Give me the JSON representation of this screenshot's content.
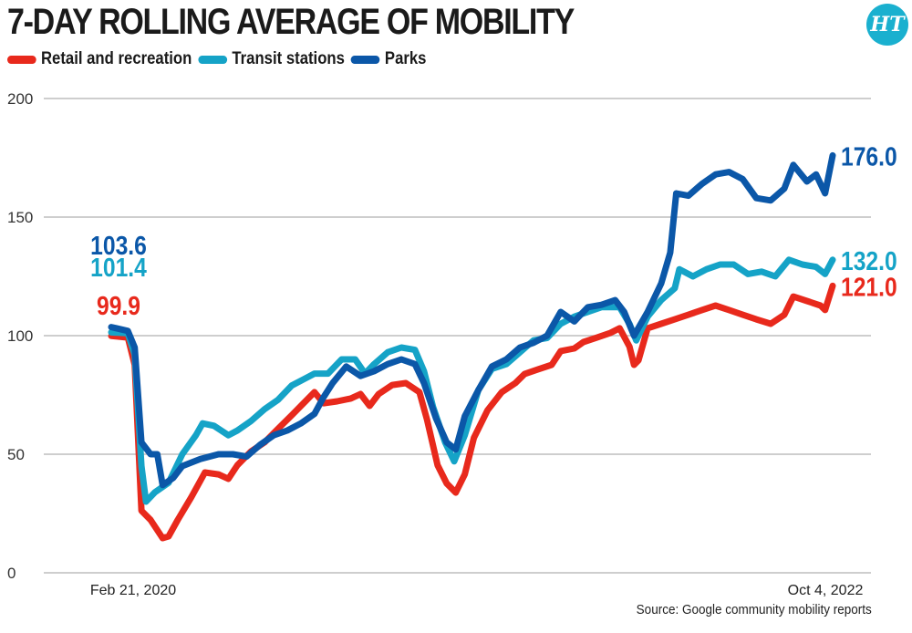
{
  "chart_data": {
    "type": "line",
    "title": "7-DAY ROLLING AVERAGE OF MOBILITY",
    "xlabel": "",
    "ylabel": "",
    "ylim": [
      0,
      200
    ],
    "yticks": [
      "0",
      "50",
      "100",
      "150",
      "200"
    ],
    "ytick_values": [
      0,
      50,
      100,
      150,
      200
    ],
    "xlim_days": [
      0,
      955
    ],
    "xtick_labels": [
      "Feb 21, 2020",
      "Oct 4, 2022"
    ],
    "x_unit": "days since Feb 21, 2020",
    "grid": true,
    "legend_position": "top-left",
    "source": "Source: Google community mobility reports",
    "logo_text": "HT",
    "series": [
      {
        "name": "Retail and recreation",
        "color": "#e8291c",
        "start_label": "99.9",
        "end_label": "121.0",
        "points": [
          [
            0,
            99.9
          ],
          [
            22,
            99.2
          ],
          [
            31,
            87.7
          ],
          [
            40,
            26.2
          ],
          [
            52,
            22.3
          ],
          [
            68,
            14.6
          ],
          [
            76,
            15.4
          ],
          [
            88,
            22.3
          ],
          [
            106,
            31.9
          ],
          [
            124,
            42.3
          ],
          [
            142,
            41.5
          ],
          [
            155,
            39.6
          ],
          [
            167,
            45.4
          ],
          [
            185,
            51.2
          ],
          [
            203,
            55
          ],
          [
            221,
            60.8
          ],
          [
            239,
            66.5
          ],
          [
            257,
            72.3
          ],
          [
            269,
            76.2
          ],
          [
            281,
            71.5
          ],
          [
            299,
            72.3
          ],
          [
            317,
            73.5
          ],
          [
            330,
            75.4
          ],
          [
            342,
            70.4
          ],
          [
            354,
            75.4
          ],
          [
            372,
            79.2
          ],
          [
            390,
            80
          ],
          [
            408,
            76.2
          ],
          [
            418,
            64.6
          ],
          [
            432,
            45.4
          ],
          [
            444,
            37.7
          ],
          [
            456,
            33.8
          ],
          [
            468,
            41.5
          ],
          [
            480,
            56.9
          ],
          [
            498,
            68.5
          ],
          [
            517,
            76.2
          ],
          [
            535,
            80
          ],
          [
            547,
            83.8
          ],
          [
            565,
            85.8
          ],
          [
            583,
            87.7
          ],
          [
            595,
            93.5
          ],
          [
            613,
            94.6
          ],
          [
            625,
            97.3
          ],
          [
            643,
            99.2
          ],
          [
            661,
            101.2
          ],
          [
            673,
            103.1
          ],
          [
            686,
            95.4
          ],
          [
            692,
            87.7
          ],
          [
            698,
            89.6
          ],
          [
            710,
            103.1
          ],
          [
            728,
            105
          ],
          [
            746,
            106.9
          ],
          [
            764,
            108.8
          ],
          [
            782,
            110.8
          ],
          [
            800,
            112.7
          ],
          [
            818,
            110.8
          ],
          [
            836,
            108.8
          ],
          [
            854,
            106.9
          ],
          [
            873,
            105
          ],
          [
            891,
            108.8
          ],
          [
            903,
            116.5
          ],
          [
            921,
            114.6
          ],
          [
            939,
            112.7
          ],
          [
            945,
            110.8
          ],
          [
            955,
            121
          ]
        ]
      },
      {
        "name": "Transit stations",
        "color": "#15a3c7",
        "start_label": "101.4",
        "end_label": "132.0",
        "points": [
          [
            0,
            101.4
          ],
          [
            22,
            101
          ],
          [
            31,
            92
          ],
          [
            40,
            45
          ],
          [
            46,
            30
          ],
          [
            58,
            34
          ],
          [
            76,
            38
          ],
          [
            94,
            50
          ],
          [
            112,
            58
          ],
          [
            121,
            63
          ],
          [
            136,
            62
          ],
          [
            155,
            58
          ],
          [
            167,
            60
          ],
          [
            185,
            64
          ],
          [
            203,
            69
          ],
          [
            221,
            73
          ],
          [
            239,
            79
          ],
          [
            257,
            82
          ],
          [
            269,
            84
          ],
          [
            287,
            84
          ],
          [
            305,
            90
          ],
          [
            323,
            90
          ],
          [
            336,
            84
          ],
          [
            348,
            88
          ],
          [
            366,
            93
          ],
          [
            384,
            95
          ],
          [
            402,
            94
          ],
          [
            414,
            85
          ],
          [
            426,
            70
          ],
          [
            442,
            55
          ],
          [
            454,
            47
          ],
          [
            468,
            58
          ],
          [
            486,
            77
          ],
          [
            504,
            86
          ],
          [
            523,
            88
          ],
          [
            541,
            93
          ],
          [
            559,
            98
          ],
          [
            577,
            99
          ],
          [
            595,
            105
          ],
          [
            613,
            108
          ],
          [
            631,
            110
          ],
          [
            649,
            112
          ],
          [
            673,
            112
          ],
          [
            686,
            105
          ],
          [
            695,
            98
          ],
          [
            710,
            108
          ],
          [
            728,
            115
          ],
          [
            746,
            120
          ],
          [
            752,
            128
          ],
          [
            770,
            125
          ],
          [
            788,
            128
          ],
          [
            806,
            130
          ],
          [
            824,
            130
          ],
          [
            843,
            126
          ],
          [
            861,
            127
          ],
          [
            879,
            125
          ],
          [
            897,
            132
          ],
          [
            915,
            130
          ],
          [
            933,
            129
          ],
          [
            945,
            126
          ],
          [
            955,
            132
          ]
        ]
      },
      {
        "name": "Parks",
        "color": "#0b57a8",
        "start_label": "103.6",
        "end_label": "176.0",
        "points": [
          [
            0,
            103.6
          ],
          [
            22,
            102
          ],
          [
            31,
            95
          ],
          [
            40,
            55
          ],
          [
            52,
            50
          ],
          [
            61,
            50
          ],
          [
            68,
            37
          ],
          [
            82,
            40
          ],
          [
            94,
            45
          ],
          [
            118,
            48
          ],
          [
            142,
            50
          ],
          [
            161,
            50
          ],
          [
            179,
            49
          ],
          [
            197,
            54
          ],
          [
            215,
            58
          ],
          [
            233,
            60
          ],
          [
            251,
            63
          ],
          [
            269,
            67
          ],
          [
            281,
            74
          ],
          [
            293,
            80
          ],
          [
            311,
            87
          ],
          [
            330,
            83
          ],
          [
            348,
            85
          ],
          [
            366,
            88
          ],
          [
            384,
            90
          ],
          [
            402,
            88
          ],
          [
            414,
            80
          ],
          [
            430,
            65
          ],
          [
            444,
            55
          ],
          [
            456,
            52
          ],
          [
            468,
            66
          ],
          [
            486,
            77
          ],
          [
            504,
            87
          ],
          [
            523,
            90
          ],
          [
            541,
            95
          ],
          [
            559,
            97
          ],
          [
            577,
            100
          ],
          [
            595,
            110
          ],
          [
            613,
            106
          ],
          [
            631,
            112
          ],
          [
            649,
            113
          ],
          [
            667,
            115
          ],
          [
            679,
            110
          ],
          [
            692,
            100
          ],
          [
            710,
            110
          ],
          [
            728,
            122
          ],
          [
            740,
            135
          ],
          [
            748,
            160
          ],
          [
            764,
            159
          ],
          [
            782,
            164
          ],
          [
            800,
            168
          ],
          [
            818,
            169
          ],
          [
            836,
            166
          ],
          [
            854,
            158
          ],
          [
            873,
            157
          ],
          [
            891,
            162
          ],
          [
            903,
            172
          ],
          [
            921,
            165
          ],
          [
            933,
            168
          ],
          [
            945,
            160
          ],
          [
            955,
            176
          ]
        ]
      }
    ]
  }
}
